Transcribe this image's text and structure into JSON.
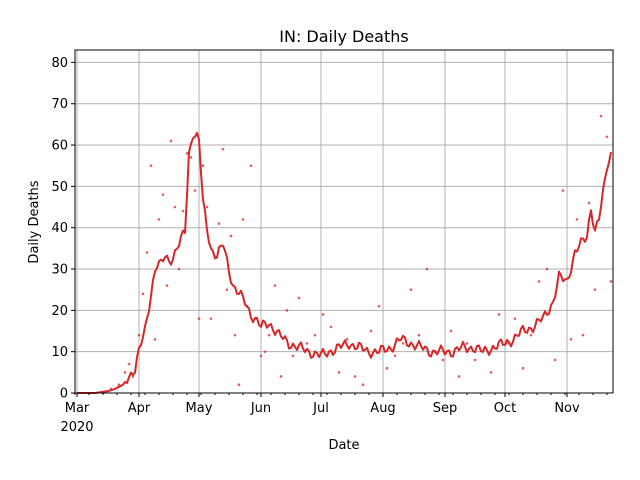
{
  "chart_data": {
    "type": "line",
    "title": "IN: Daily Deaths",
    "xlabel": "Date",
    "ylabel": "Daily Deaths",
    "ylim": [
      0,
      83
    ],
    "yticks": [
      0,
      10,
      20,
      30,
      40,
      50,
      60,
      70,
      80
    ],
    "xlim": [
      "2020-02-29",
      "2020-11-24"
    ],
    "xticks": [
      {
        "date": "2020-03-01",
        "label": "Mar",
        "sublabel": "2020"
      },
      {
        "date": "2020-04-01",
        "label": "Apr"
      },
      {
        "date": "2020-05-01",
        "label": "May"
      },
      {
        "date": "2020-06-01",
        "label": "Jun"
      },
      {
        "date": "2020-07-01",
        "label": "Jul"
      },
      {
        "date": "2020-08-01",
        "label": "Aug"
      },
      {
        "date": "2020-09-01",
        "label": "Sep"
      },
      {
        "date": "2020-10-01",
        "label": "Oct"
      },
      {
        "date": "2020-11-01",
        "label": "Nov"
      }
    ],
    "grid": true,
    "colors": {
      "line": "#d62728",
      "points": "#d62728",
      "ylabel": "#d62728",
      "grid": "#b0b0b0"
    },
    "series": [
      {
        "style": "line",
        "x": [
          "2020-03-01",
          "2020-03-10",
          "2020-03-17",
          "2020-03-20",
          "2020-03-24",
          "2020-03-27",
          "2020-03-30",
          "2020-04-01",
          "2020-04-04",
          "2020-04-07",
          "2020-04-09",
          "2020-04-10",
          "2020-04-12",
          "2020-04-14",
          "2020-04-16",
          "2020-04-18",
          "2020-04-20",
          "2020-04-22",
          "2020-04-24",
          "2020-04-26",
          "2020-04-28",
          "2020-04-30",
          "2020-05-01",
          "2020-05-03",
          "2020-05-05",
          "2020-05-07",
          "2020-05-10",
          "2020-05-13",
          "2020-05-16",
          "2020-05-18",
          "2020-05-21",
          "2020-05-24",
          "2020-05-27",
          "2020-05-29",
          "2020-06-01",
          "2020-06-05",
          "2020-06-10",
          "2020-06-15",
          "2020-06-20",
          "2020-06-25",
          "2020-07-01",
          "2020-07-05",
          "2020-07-10",
          "2020-07-15",
          "2020-07-20",
          "2020-07-25",
          "2020-07-30",
          "2020-08-05",
          "2020-08-10",
          "2020-08-15",
          "2020-08-20",
          "2020-08-25",
          "2020-08-31",
          "2020-09-05",
          "2020-09-10",
          "2020-09-15",
          "2020-09-20",
          "2020-09-25",
          "2020-10-01",
          "2020-10-05",
          "2020-10-10",
          "2020-10-15",
          "2020-10-20",
          "2020-10-25",
          "2020-10-28",
          "2020-11-01",
          "2020-11-05",
          "2020-11-08",
          "2020-11-11",
          "2020-11-13",
          "2020-11-15",
          "2020-11-17",
          "2020-11-19",
          "2020-11-21",
          "2020-11-23"
        ],
        "y": [
          0,
          0,
          0.5,
          1,
          2,
          4,
          6,
          10,
          15,
          24,
          30,
          31,
          31,
          33,
          32,
          33,
          35,
          37,
          39,
          58,
          63,
          62,
          61,
          46,
          40,
          35,
          33,
          36,
          30,
          26,
          24,
          22,
          19,
          18,
          16,
          17,
          14,
          12,
          11,
          10,
          9,
          10,
          11,
          12,
          11,
          10,
          10,
          11,
          13,
          12,
          11,
          10,
          10,
          10,
          11,
          11,
          10,
          11,
          12,
          13,
          15,
          16,
          18,
          22,
          28,
          27,
          34,
          36,
          38,
          45,
          39,
          42,
          48,
          55,
          58
        ]
      },
      {
        "style": "points",
        "x": [
          "2020-03-18",
          "2020-03-22",
          "2020-03-25",
          "2020-03-27",
          "2020-03-29",
          "2020-04-01",
          "2020-04-03",
          "2020-04-05",
          "2020-04-07",
          "2020-04-09",
          "2020-04-11",
          "2020-04-13",
          "2020-04-15",
          "2020-04-17",
          "2020-04-19",
          "2020-04-21",
          "2020-04-23",
          "2020-04-25",
          "2020-04-27",
          "2020-04-29",
          "2020-05-01",
          "2020-05-03",
          "2020-05-05",
          "2020-05-07",
          "2020-05-09",
          "2020-05-11",
          "2020-05-13",
          "2020-05-15",
          "2020-05-17",
          "2020-05-19",
          "2020-05-21",
          "2020-05-23",
          "2020-05-25",
          "2020-05-27",
          "2020-05-29",
          "2020-06-01",
          "2020-06-03",
          "2020-06-05",
          "2020-06-08",
          "2020-06-11",
          "2020-06-14",
          "2020-06-17",
          "2020-06-20",
          "2020-06-24",
          "2020-06-28",
          "2020-07-02",
          "2020-07-06",
          "2020-07-10",
          "2020-07-14",
          "2020-07-18",
          "2020-07-22",
          "2020-07-26",
          "2020-07-30",
          "2020-08-03",
          "2020-08-07",
          "2020-08-11",
          "2020-08-15",
          "2020-08-19",
          "2020-08-23",
          "2020-08-27",
          "2020-08-31",
          "2020-09-04",
          "2020-09-08",
          "2020-09-12",
          "2020-09-16",
          "2020-09-20",
          "2020-09-24",
          "2020-09-28",
          "2020-10-02",
          "2020-10-06",
          "2020-10-10",
          "2020-10-14",
          "2020-10-18",
          "2020-10-22",
          "2020-10-26",
          "2020-10-30",
          "2020-11-03",
          "2020-11-06",
          "2020-11-09",
          "2020-11-12",
          "2020-11-15",
          "2020-11-18",
          "2020-11-21",
          "2020-11-23"
        ],
        "y": [
          1,
          2,
          5,
          7,
          4,
          14,
          24,
          34,
          55,
          13,
          42,
          48,
          26,
          61,
          45,
          30,
          44,
          58,
          57,
          49,
          18,
          55,
          45,
          18,
          33,
          41,
          59,
          25,
          38,
          14,
          2,
          42,
          21,
          55,
          18,
          9,
          10,
          14,
          26,
          4,
          20,
          9,
          23,
          12,
          14,
          19,
          16,
          5,
          13,
          4,
          2,
          15,
          21,
          6,
          9,
          12,
          25,
          14,
          30,
          10,
          8,
          15,
          4,
          12,
          8,
          10,
          5,
          19,
          12,
          18,
          6,
          14,
          27,
          30,
          8,
          49,
          13,
          42,
          14,
          46,
          25,
          67,
          62,
          27
        ]
      }
    ]
  }
}
